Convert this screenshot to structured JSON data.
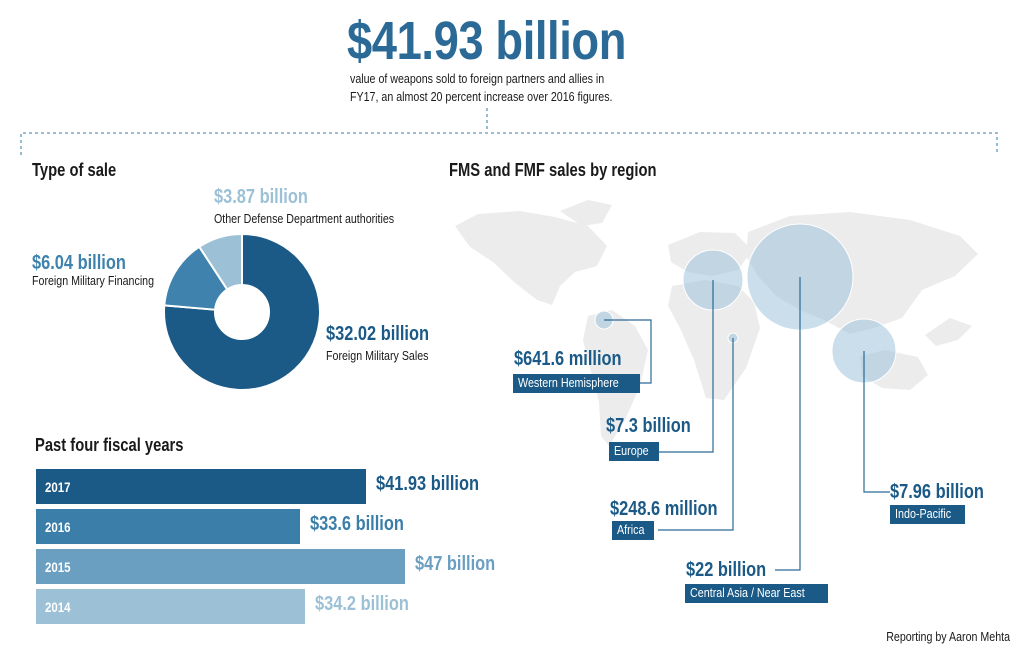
{
  "header": {
    "headline": "$41.93 billion",
    "sub_line1": "value of weapons sold to foreign partners and allies in",
    "sub_line2": "FY17, an almost 20 percent increase over 2016 figures."
  },
  "type_of_sale": {
    "title": "Type of sale",
    "slices": [
      {
        "value_label": "$32.02 billion",
        "label": "Foreign Military Sales",
        "value": 32.02,
        "color": "#1b5a87"
      },
      {
        "value_label": "$6.04 billion",
        "label": "Foreign Military Financing",
        "value": 6.04,
        "color": "#3e82ad"
      },
      {
        "value_label": "$3.87 billion",
        "label": "Other Defense Department authorities",
        "value": 3.87,
        "color": "#9cc0d6"
      }
    ]
  },
  "regions": {
    "title": "FMS and FMF sales by region",
    "items": [
      {
        "value_label": "$641.6 million",
        "name": "Western Hemisphere",
        "value": 0.6416
      },
      {
        "value_label": "$7.3 billion",
        "name": "Europe",
        "value": 7.3
      },
      {
        "value_label": "$248.6 million",
        "name": "Africa",
        "value": 0.2486
      },
      {
        "value_label": "$22 billion",
        "name": "Central Asia / Near East",
        "value": 22
      },
      {
        "value_label": "$7.96 billion",
        "name": "Indo-Pacific",
        "value": 7.96
      }
    ]
  },
  "fiscal_years": {
    "title": "Past four fiscal years"
  },
  "chart_data": {
    "type": "bar",
    "orientation": "horizontal",
    "categories": [
      "2017",
      "2016",
      "2015",
      "2014"
    ],
    "values": [
      41.93,
      33.6,
      47,
      34.2
    ],
    "value_labels": [
      "$41.93 billion",
      "$33.6 billion",
      "$47 billion",
      "$34.2 billion"
    ],
    "colors": [
      "#1b5a87",
      "#3a7ea9",
      "#6a9fc2",
      "#9cc0d6"
    ],
    "title": "Past four fiscal years",
    "unit": "billion USD"
  },
  "credit": "Reporting by Aaron Mehta"
}
